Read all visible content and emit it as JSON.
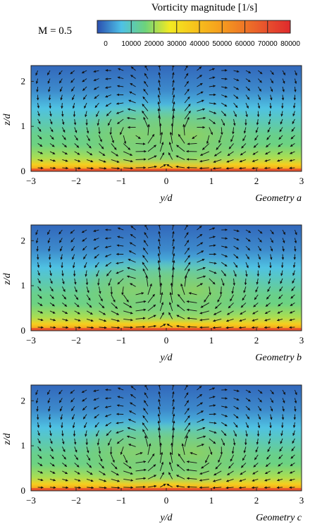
{
  "header": {
    "colorbar_title": "Vorticity magnitude [1/s]",
    "mach_label": "M = 0.5"
  },
  "colorbar": {
    "ticks": [
      "0",
      "10000",
      "20000",
      "30000",
      "40000",
      "50000",
      "60000",
      "70000",
      "80000"
    ],
    "colors": [
      "#2a4fb0",
      "#4ec1e6",
      "#6ed37a",
      "#f2ea22",
      "#f7c51c",
      "#f6a21d",
      "#ef7a25",
      "#e8512d",
      "#df2a2d"
    ]
  },
  "chart_data": [
    {
      "type": "heatmap",
      "title": "",
      "subtitle": "Geometry a",
      "xlabel": "y/d",
      "ylabel": "z/d",
      "xlim": [
        -3,
        3
      ],
      "ylim": [
        0,
        2.35
      ],
      "xticks": [
        "-3",
        "-2",
        "-1",
        "0",
        "1",
        "2",
        "3"
      ],
      "yticks": [
        "0",
        "1",
        "2"
      ],
      "vortex_core": {
        "y": 0.6,
        "z": 0.8
      },
      "vorticity_profile": {
        "z": [
          0,
          0.05,
          0.15,
          0.3,
          0.6,
          0.8,
          1.0,
          1.4,
          1.8,
          2.35
        ],
        "value": [
          78000,
          36000,
          22000,
          13000,
          10000,
          9500,
          8000,
          5000,
          2500,
          1000
        ]
      }
    },
    {
      "type": "heatmap",
      "title": "",
      "subtitle": "Geometry b",
      "xlabel": "y/d",
      "ylabel": "z/d",
      "xlim": [
        -3,
        3
      ],
      "ylim": [
        0,
        2.35
      ],
      "xticks": [
        "-3",
        "-2",
        "-1",
        "0",
        "1",
        "2",
        "3"
      ],
      "yticks": [
        "0",
        "1",
        "2"
      ],
      "vortex_core": {
        "y": 0.65,
        "z": 0.9
      },
      "vorticity_profile": {
        "z": [
          0,
          0.05,
          0.15,
          0.3,
          0.6,
          0.8,
          1.0,
          1.4,
          1.8,
          2.35
        ],
        "value": [
          78000,
          36000,
          22000,
          13000,
          10000,
          9500,
          8000,
          5000,
          2500,
          1000
        ]
      }
    },
    {
      "type": "heatmap",
      "title": "",
      "subtitle": "Geometry c",
      "xlabel": "y/d",
      "ylabel": "z/d",
      "xlim": [
        -3,
        3
      ],
      "ylim": [
        0,
        2.35
      ],
      "xticks": [
        "-3",
        "-2",
        "-1",
        "0",
        "1",
        "2",
        "3"
      ],
      "yticks": [
        "0",
        "1",
        "2"
      ],
      "vortex_core": {
        "y": 0.65,
        "z": 0.85
      },
      "vorticity_profile": {
        "z": [
          0,
          0.05,
          0.15,
          0.3,
          0.6,
          0.8,
          1.0,
          1.4,
          1.8,
          2.35
        ],
        "value": [
          78000,
          36000,
          22000,
          13000,
          10000,
          9500,
          8000,
          5000,
          2500,
          1000
        ]
      }
    }
  ]
}
